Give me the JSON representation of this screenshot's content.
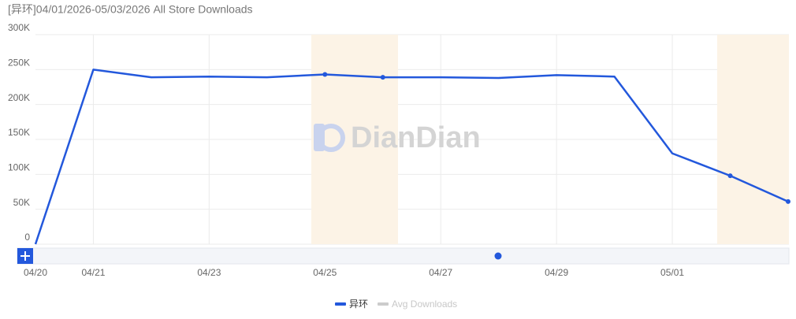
{
  "chart_data": {
    "type": "line",
    "title": "[异环]04/01/2026-05/03/2026 All Store Downloads",
    "watermark": "DianDian",
    "categories": [
      "04/20",
      "04/21",
      null,
      "04/23",
      null,
      "04/25",
      null,
      "04/27",
      null,
      "04/29",
      null,
      "05/01",
      null,
      null
    ],
    "series": [
      {
        "name": "异环",
        "color": "#2358dc",
        "values": [
          0,
          250000,
          239000,
          240000,
          239000,
          243000,
          239000,
          239000,
          238000,
          242000,
          240000,
          130000,
          98000,
          61000
        ]
      },
      {
        "name": "Avg Downloads",
        "color": "#cccccc",
        "visible": false,
        "values": [
          null,
          null,
          null,
          null,
          null,
          null,
          null,
          null,
          null,
          null,
          null,
          null,
          null,
          null
        ]
      }
    ],
    "ylim": [
      0,
      300000
    ],
    "yticks": [
      0,
      {
        "value": 50000,
        "label": "50K"
      },
      {
        "value": 100000,
        "label": "100K"
      },
      {
        "value": 150000,
        "label": "150K"
      },
      {
        "value": 200000,
        "label": "200K"
      },
      {
        "value": 250000,
        "label": "250K"
      },
      {
        "value": 300000,
        "label": "300K"
      }
    ],
    "grid": true
  }
}
